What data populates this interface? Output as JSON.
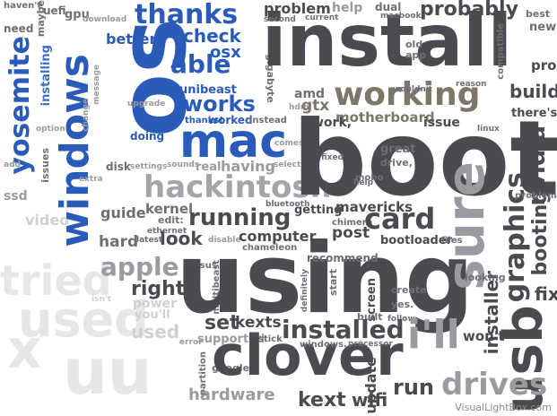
{
  "words": {
    "install": "install",
    "boot": "boot",
    "using": "using",
    "os": "os",
    "mac": "mac",
    "windows": "windows",
    "yosemite": "yosemite",
    "clover": "clover",
    "usb": "usb",
    "hackintosh": "hackintosh",
    "working": "working",
    "installed": "installed",
    "running": "running",
    "card": "card",
    "thanks": "thanks",
    "works": "works",
    "build": "build",
    "graphics": "graphics",
    "nvidia": "nvidia",
    "probably": "probably",
    "sure": "sure",
    "apple": "apple",
    "problem": "problem",
    "motherboard": "motherboard",
    "better": "better",
    "check": "check",
    "osx": "osx",
    "able": "able",
    "mavericks": "mavericks",
    "guide": "guide",
    "look": "look",
    "hard": "hard",
    "kernel": "kernel",
    "bootloader": "bootloader",
    "getting": "getting",
    "post": "post",
    "computer": "computer",
    "kexts": "kexts",
    "set": "set",
    "right": "right",
    "used": "used",
    "run": "run",
    "drives": "drives",
    "update": "update",
    "fix": "fix",
    "kext": "kext",
    "wifi": "wifi",
    "hardware": "hardware",
    "unibeast": "unibeast",
    "worked": "worked",
    "thanks_excl": "thanks!",
    "doing": "doing",
    "having": "having",
    "disk": "disk",
    "settings": "settings",
    "edit": "edit:",
    "work": "work,",
    "issue": "issue",
    "gtx": "gtx",
    "amd": "amd",
    "installer": "installer",
    "booting": "booting",
    "theres": "there's",
    "pro": "pro",
    "new": "new",
    "best": "best",
    "gpu": "gpu",
    "ssd": "ssd",
    "video": "video",
    "tried": "tried",
    "chimera": "chimera",
    "chameleon": "chameleon",
    "help": "help",
    "current": "current",
    "second": "second",
    "supported": "supported",
    "google": "google",
    "stick": "stick",
    "screen": "screen",
    "built": "built",
    "ill": "i'll",
    "wont": "won't",
    "multibeast": "multibeast",
    "gigabyte": "gigabyte",
    "recommend": "recommend",
    "ethernet": "ethernet",
    "bluetooth": "bluetooth",
    "problems": "problems",
    "files": "files",
    "looking": "looking",
    "create": "create",
    "fixed": "fixed",
    "great": "great",
    "drive": "drive,",
    "mobo": "mobo",
    "installing": "installing",
    "macbook": "macbook",
    "download": "download",
    "havent": "haven't",
    "dual": "dual",
    "maybe": "maybe",
    "need": "need",
    "uefi": "uefi",
    "compatible": "compatible",
    "linux": "linux",
    "power": "power",
    "youll": "you'll",
    "isnt": "isn't",
    "instead": "instead",
    "latest": "latest",
    "disable": "disable",
    "option": "option",
    "issues": "issues",
    "extra": "extra",
    "add": "add",
    "error": "error",
    "partition": "partition",
    "sounds": "sounds",
    "real": "real",
    "comes": "comes",
    "select": "select",
    "asus": "asus",
    "reason": "reason",
    "wouldnt": "wouldn't",
    "that": "that.",
    "start": "start",
    "yes": "yes.",
    "definitely": "definitely",
    "windows_lc": "windows.",
    "follow": "follow",
    "processor": "processor",
    "running_light": "running",
    "old": "old",
    "app": "app",
    "hdmi": "hdmi",
    "upgrade": "upgrade",
    "message": "message",
    "change": "change",
    "x": "x",
    "uu": "uu"
  },
  "credit": "VisualLightBox.com"
}
